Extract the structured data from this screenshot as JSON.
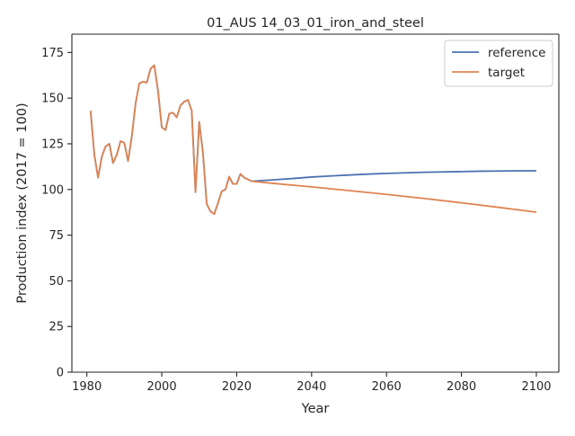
{
  "chart_data": {
    "type": "line",
    "title": "01_AUS 14_03_01_iron_and_steel",
    "xlabel": "Year",
    "ylabel": "Production index (2017 = 100)",
    "xlim": [
      1976,
      2106
    ],
    "ylim": [
      0,
      185
    ],
    "xticks": [
      1980,
      2000,
      2020,
      2040,
      2060,
      2080,
      2100
    ],
    "yticks": [
      0,
      25,
      50,
      75,
      100,
      125,
      150,
      175
    ],
    "grid": false,
    "legend_position": "top-right",
    "series": [
      {
        "name": "reference",
        "color": "#4c72b0",
        "points": [
          [
            1981,
            143
          ],
          [
            1982,
            119
          ],
          [
            1983,
            106.5
          ],
          [
            1984,
            118
          ],
          [
            1985,
            123.5
          ],
          [
            1986,
            125
          ],
          [
            1987,
            114.5
          ],
          [
            1988,
            119
          ],
          [
            1989,
            126.5
          ],
          [
            1990,
            125.5
          ],
          [
            1991,
            115.5
          ],
          [
            1992,
            129
          ],
          [
            1993,
            147
          ],
          [
            1994,
            158
          ],
          [
            1995,
            159
          ],
          [
            1996,
            158.5
          ],
          [
            1997,
            166
          ],
          [
            1998,
            168
          ],
          [
            1999,
            154
          ],
          [
            2000,
            134
          ],
          [
            2001,
            132.5
          ],
          [
            2002,
            141.5
          ],
          [
            2003,
            142
          ],
          [
            2004,
            139.5
          ],
          [
            2005,
            146
          ],
          [
            2006,
            148
          ],
          [
            2007,
            149
          ],
          [
            2008,
            143
          ],
          [
            2009,
            98.5
          ],
          [
            2010,
            137
          ],
          [
            2011,
            120
          ],
          [
            2012,
            92
          ],
          [
            2013,
            88
          ],
          [
            2014,
            86.5
          ],
          [
            2015,
            92.5
          ],
          [
            2016,
            99
          ],
          [
            2017,
            100
          ],
          [
            2018,
            107
          ],
          [
            2019,
            103
          ],
          [
            2020,
            103
          ],
          [
            2021,
            108.5
          ],
          [
            2022,
            106.5
          ],
          [
            2023,
            105.5
          ],
          [
            2024,
            104.5
          ],
          [
            2025,
            104.6
          ],
          [
            2030,
            105.3
          ],
          [
            2035,
            106
          ],
          [
            2040,
            106.8
          ],
          [
            2045,
            107.4
          ],
          [
            2050,
            107.9
          ],
          [
            2055,
            108.4
          ],
          [
            2060,
            108.8
          ],
          [
            2065,
            109.1
          ],
          [
            2070,
            109.4
          ],
          [
            2075,
            109.6
          ],
          [
            2080,
            109.8
          ],
          [
            2085,
            110
          ],
          [
            2090,
            110.1
          ],
          [
            2095,
            110.2
          ],
          [
            2100,
            110.2
          ]
        ]
      },
      {
        "name": "target",
        "color": "#dd8452",
        "points": [
          [
            1981,
            143
          ],
          [
            1982,
            119
          ],
          [
            1983,
            106.5
          ],
          [
            1984,
            118
          ],
          [
            1985,
            123.5
          ],
          [
            1986,
            125
          ],
          [
            1987,
            114.5
          ],
          [
            1988,
            119
          ],
          [
            1989,
            126.5
          ],
          [
            1990,
            125.5
          ],
          [
            1991,
            115.5
          ],
          [
            1992,
            129
          ],
          [
            1993,
            147
          ],
          [
            1994,
            158
          ],
          [
            1995,
            159
          ],
          [
            1996,
            158.5
          ],
          [
            1997,
            166
          ],
          [
            1998,
            168
          ],
          [
            1999,
            154
          ],
          [
            2000,
            134
          ],
          [
            2001,
            132.5
          ],
          [
            2002,
            141.5
          ],
          [
            2003,
            142
          ],
          [
            2004,
            139.5
          ],
          [
            2005,
            146
          ],
          [
            2006,
            148
          ],
          [
            2007,
            149
          ],
          [
            2008,
            143
          ],
          [
            2009,
            98.5
          ],
          [
            2010,
            137
          ],
          [
            2011,
            120
          ],
          [
            2012,
            92
          ],
          [
            2013,
            88
          ],
          [
            2014,
            86.5
          ],
          [
            2015,
            92.5
          ],
          [
            2016,
            99
          ],
          [
            2017,
            100
          ],
          [
            2018,
            107
          ],
          [
            2019,
            103
          ],
          [
            2020,
            103
          ],
          [
            2021,
            108.5
          ],
          [
            2022,
            106.5
          ],
          [
            2023,
            105.5
          ],
          [
            2024,
            104.5
          ],
          [
            2030,
            103.3
          ],
          [
            2040,
            101.4
          ],
          [
            2050,
            99.4
          ],
          [
            2060,
            97.3
          ],
          [
            2070,
            95.1
          ],
          [
            2080,
            92.7
          ],
          [
            2090,
            90.2
          ],
          [
            2100,
            87.6
          ]
        ]
      }
    ]
  }
}
